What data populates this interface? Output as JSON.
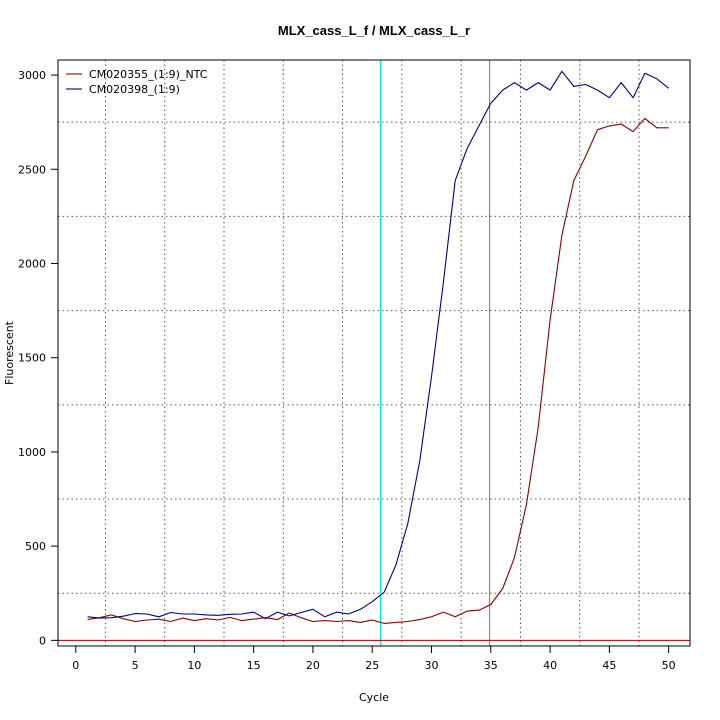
{
  "chart_data": {
    "type": "line",
    "title": "MLX_cass_L_f / MLX_cass_L_r",
    "xlabel": "Cycle",
    "ylabel": "Fluorescent",
    "xlim": [
      -1.5,
      51.8
    ],
    "ylim": [
      -30,
      3080
    ],
    "xticks": [
      0,
      5,
      10,
      15,
      20,
      25,
      30,
      35,
      40,
      45,
      50
    ],
    "yticks": [
      0,
      500,
      1000,
      1500,
      2000,
      2500,
      3000
    ],
    "grid": true,
    "grid_style": "dotted",
    "legend_position": "top-left",
    "vertical_lines": [
      {
        "x": 25.7,
        "color": "#00e5ee"
      },
      {
        "x": 34.9,
        "color": "#ff4040"
      }
    ],
    "horizontal_lines": [
      {
        "y": 0,
        "color": "#aa0000"
      }
    ],
    "series": [
      {
        "name": "CM020355_(1:9)_NTC",
        "color": "#8b0000",
        "x": [
          1,
          2,
          3,
          4,
          5,
          6,
          7,
          8,
          9,
          10,
          11,
          12,
          13,
          14,
          15,
          16,
          17,
          18,
          19,
          20,
          21,
          22,
          23,
          24,
          25,
          26,
          27,
          28,
          29,
          30,
          31,
          32,
          33,
          34,
          35,
          36,
          37,
          38,
          39,
          40,
          41,
          42,
          43,
          44,
          45,
          46,
          47,
          48,
          49,
          50
        ],
        "values": [
          110,
          120,
          135,
          115,
          100,
          108,
          112,
          100,
          118,
          105,
          115,
          108,
          122,
          105,
          113,
          120,
          110,
          145,
          120,
          100,
          105,
          100,
          105,
          95,
          108,
          90,
          95,
          100,
          110,
          125,
          150,
          125,
          155,
          160,
          190,
          275,
          440,
          720,
          1130,
          1700,
          2150,
          2440,
          2570,
          2710,
          2730,
          2740,
          2700,
          2770,
          2720,
          2720
        ]
      },
      {
        "name": "CM020398_(1:9)",
        "color": "#00008b",
        "x": [
          1,
          2,
          3,
          4,
          5,
          6,
          7,
          8,
          9,
          10,
          11,
          12,
          13,
          14,
          15,
          16,
          17,
          18,
          19,
          20,
          21,
          22,
          23,
          24,
          25,
          26,
          27,
          28,
          29,
          30,
          31,
          32,
          33,
          34,
          35,
          36,
          37,
          38,
          39,
          40,
          41,
          42,
          43,
          44,
          45,
          46,
          47,
          48,
          49,
          50
        ],
        "values": [
          125,
          118,
          120,
          128,
          142,
          140,
          125,
          148,
          140,
          140,
          135,
          133,
          138,
          140,
          150,
          115,
          150,
          130,
          148,
          165,
          125,
          150,
          140,
          165,
          205,
          255,
          400,
          620,
          950,
          1400,
          1900,
          2440,
          2610,
          2730,
          2850,
          2920,
          2960,
          2920,
          2960,
          2920,
          3020,
          2940,
          2950,
          2920,
          2880,
          2960,
          2880,
          3010,
          2980,
          2930
        ]
      }
    ]
  }
}
